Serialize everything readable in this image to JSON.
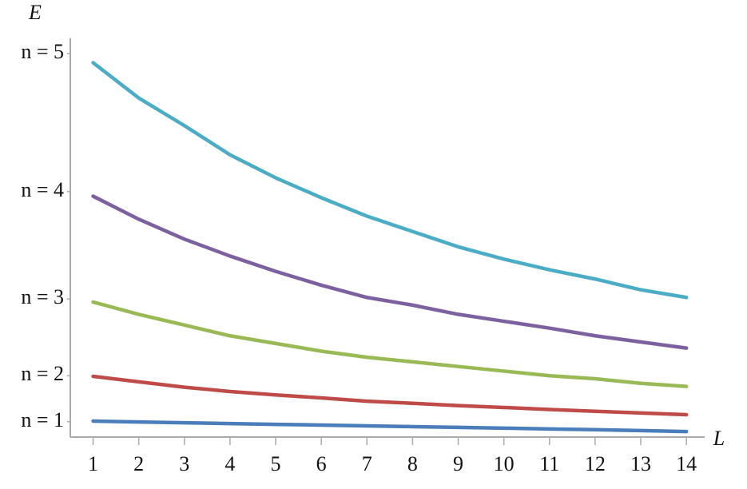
{
  "chart_data": {
    "type": "line",
    "y_label": "E",
    "x_label": "L",
    "x": [
      1,
      2,
      3,
      4,
      5,
      6,
      7,
      8,
      9,
      10,
      11,
      12,
      13,
      14
    ],
    "xlim": [
      0.5,
      14.4
    ],
    "xticks": [
      1,
      2,
      3,
      4,
      5,
      6,
      7,
      8,
      9,
      10,
      11,
      12,
      13,
      14
    ],
    "ylim": [
      0,
      26
    ],
    "yticks": [
      {
        "value": 1,
        "label": "n = 1"
      },
      {
        "value": 4,
        "label": "n = 2"
      },
      {
        "value": 9,
        "label": "n = 3"
      },
      {
        "value": 16,
        "label": "n = 4"
      },
      {
        "value": 25,
        "label": "n = 5"
      }
    ],
    "series": [
      {
        "color": "#4a7ebb",
        "values": [
          1.04,
          0.98,
          0.93,
          0.88,
          0.83,
          0.78,
          0.73,
          0.68,
          0.63,
          0.58,
          0.53,
          0.48,
          0.42,
          0.36
        ]
      },
      {
        "color": "#be4b48",
        "values": [
          3.96,
          3.6,
          3.25,
          2.97,
          2.75,
          2.55,
          2.34,
          2.2,
          2.05,
          1.93,
          1.8,
          1.68,
          1.57,
          1.46
        ]
      },
      {
        "color": "#98b954",
        "values": [
          8.8,
          8.0,
          7.3,
          6.6,
          6.1,
          5.6,
          5.2,
          4.9,
          4.6,
          4.3,
          4.0,
          3.8,
          3.5,
          3.3
        ]
      },
      {
        "color": "#7d60a0",
        "values": [
          15.7,
          14.2,
          12.9,
          11.8,
          10.8,
          9.9,
          9.1,
          8.6,
          8.0,
          7.55,
          7.1,
          6.6,
          6.2,
          5.8
        ]
      },
      {
        "color": "#4bacc6",
        "values": [
          24.4,
          22.1,
          20.3,
          18.4,
          16.9,
          15.6,
          14.4,
          13.4,
          12.4,
          11.6,
          10.9,
          10.3,
          9.6,
          9.1
        ]
      }
    ]
  }
}
